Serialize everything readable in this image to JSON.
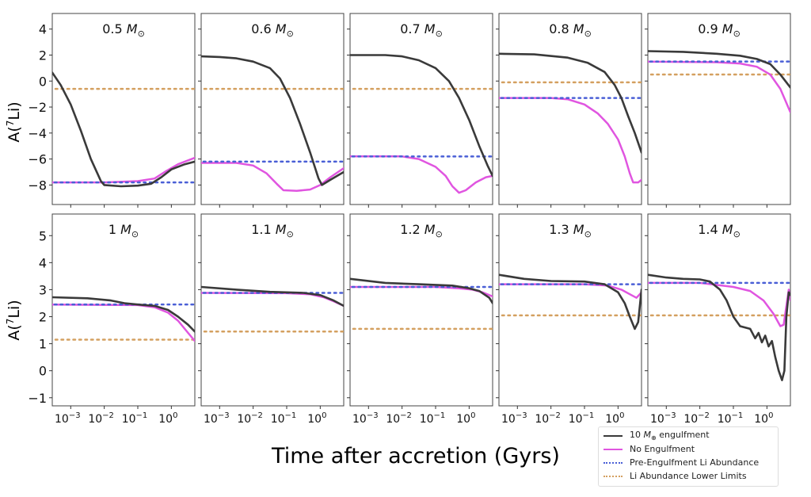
{
  "chart_data": {
    "type": "line",
    "figure_xlabel": "Time after accretion (Gyrs)",
    "ylabel": "A(⁷Li)",
    "xscale": "log",
    "xlim_log10": [
      -3.55,
      0.7
    ],
    "xticks": [
      {
        "log10": -3,
        "label": "10",
        "exp": "−3"
      },
      {
        "log10": -2,
        "label": "10",
        "exp": "−2"
      },
      {
        "log10": -1,
        "label": "10",
        "exp": "−1"
      },
      {
        "log10": 0,
        "label": "10",
        "exp": "0"
      }
    ],
    "rows": [
      {
        "ylim": [
          -9.5,
          5.2
        ],
        "yticks": [
          4,
          2,
          0,
          -2,
          -4,
          -6,
          -8
        ],
        "ytick_labels": [
          "4",
          "2",
          "0",
          "−2",
          "−4",
          "−6",
          "−8"
        ]
      },
      {
        "ylim": [
          -1.3,
          5.8
        ],
        "yticks": [
          5,
          4,
          3,
          2,
          1,
          0,
          -1
        ],
        "ytick_labels": [
          "5",
          "4",
          "3",
          "2",
          "1",
          "0",
          "−1"
        ]
      }
    ],
    "legend": {
      "placement": "bottom-right",
      "entries": [
        {
          "key": "engulf",
          "label_pre": "10 ",
          "label_sym": "M",
          "label_sub": "⊕",
          "label_post": " engulfment",
          "color": "#3a3a3a",
          "style": "solid"
        },
        {
          "key": "noengulf",
          "label": "No Engulfment",
          "color": "#e055e0",
          "style": "solid"
        },
        {
          "key": "pre",
          "label": "Pre-Engulfment Li Abundance",
          "color": "#4a5fd6",
          "style": "dotted"
        },
        {
          "key": "lower",
          "label": "Li Abundance Lower Limits",
          "color": "#d4a060",
          "style": "dotted"
        }
      ]
    },
    "panels": [
      {
        "mass": "0.5",
        "row": 0,
        "col": 0,
        "pre": -7.8,
        "lower": -0.6,
        "engulf": [
          [
            -3.55,
            0.65
          ],
          [
            -3.3,
            -0.3
          ],
          [
            -3.0,
            -1.8
          ],
          [
            -2.7,
            -3.8
          ],
          [
            -2.4,
            -6.0
          ],
          [
            -2.1,
            -7.7
          ],
          [
            -2.0,
            -8.0
          ],
          [
            -1.5,
            -8.1
          ],
          [
            -1.0,
            -8.05
          ],
          [
            -0.6,
            -7.9
          ],
          [
            -0.3,
            -7.4
          ],
          [
            0.0,
            -6.8
          ],
          [
            0.4,
            -6.4
          ],
          [
            0.7,
            -6.2
          ]
        ],
        "noengulf": [
          [
            -3.55,
            -7.8
          ],
          [
            -2.0,
            -7.8
          ],
          [
            -1.0,
            -7.7
          ],
          [
            -0.5,
            -7.5
          ],
          [
            -0.2,
            -7.0
          ],
          [
            0.2,
            -6.4
          ],
          [
            0.7,
            -5.9
          ]
        ]
      },
      {
        "mass": "0.6",
        "row": 0,
        "col": 1,
        "pre": -6.2,
        "lower": -0.6,
        "engulf": [
          [
            -3.55,
            1.9
          ],
          [
            -3.0,
            1.85
          ],
          [
            -2.5,
            1.75
          ],
          [
            -2.0,
            1.5
          ],
          [
            -1.5,
            1.0
          ],
          [
            -1.2,
            0.2
          ],
          [
            -0.9,
            -1.3
          ],
          [
            -0.6,
            -3.3
          ],
          [
            -0.3,
            -5.5
          ],
          [
            -0.05,
            -7.5
          ],
          [
            0.05,
            -8.0
          ],
          [
            0.3,
            -7.6
          ],
          [
            0.7,
            -7.0
          ]
        ],
        "noengulf": [
          [
            -3.55,
            -6.3
          ],
          [
            -2.5,
            -6.3
          ],
          [
            -2.0,
            -6.5
          ],
          [
            -1.6,
            -7.1
          ],
          [
            -1.3,
            -7.9
          ],
          [
            -1.1,
            -8.4
          ],
          [
            -0.7,
            -8.45
          ],
          [
            -0.3,
            -8.35
          ],
          [
            0.0,
            -8.0
          ],
          [
            0.3,
            -7.4
          ],
          [
            0.7,
            -6.7
          ]
        ]
      },
      {
        "mass": "0.7",
        "row": 0,
        "col": 2,
        "pre": -5.8,
        "lower": -0.6,
        "engulf": [
          [
            -3.55,
            2.0
          ],
          [
            -2.5,
            2.0
          ],
          [
            -2.0,
            1.9
          ],
          [
            -1.5,
            1.6
          ],
          [
            -1.0,
            1.0
          ],
          [
            -0.6,
            0.0
          ],
          [
            -0.3,
            -1.3
          ],
          [
            0.0,
            -3.0
          ],
          [
            0.3,
            -5.0
          ],
          [
            0.55,
            -6.5
          ],
          [
            0.7,
            -7.3
          ]
        ],
        "noengulf": [
          [
            -3.55,
            -5.8
          ],
          [
            -2.0,
            -5.8
          ],
          [
            -1.5,
            -6.0
          ],
          [
            -1.0,
            -6.6
          ],
          [
            -0.7,
            -7.3
          ],
          [
            -0.5,
            -8.1
          ],
          [
            -0.3,
            -8.6
          ],
          [
            -0.1,
            -8.4
          ],
          [
            0.2,
            -7.8
          ],
          [
            0.5,
            -7.4
          ],
          [
            0.7,
            -7.3
          ]
        ]
      },
      {
        "mass": "0.8",
        "row": 0,
        "col": 3,
        "pre": -1.3,
        "lower": -0.1,
        "engulf": [
          [
            -3.55,
            2.1
          ],
          [
            -2.5,
            2.05
          ],
          [
            -1.5,
            1.8
          ],
          [
            -0.9,
            1.4
          ],
          [
            -0.4,
            0.7
          ],
          [
            -0.1,
            -0.3
          ],
          [
            0.1,
            -1.3
          ],
          [
            0.3,
            -2.7
          ],
          [
            0.5,
            -4.0
          ],
          [
            0.7,
            -5.5
          ]
        ],
        "noengulf": [
          [
            -3.55,
            -1.3
          ],
          [
            -2.0,
            -1.3
          ],
          [
            -1.5,
            -1.4
          ],
          [
            -1.0,
            -1.8
          ],
          [
            -0.6,
            -2.5
          ],
          [
            -0.3,
            -3.3
          ],
          [
            0.0,
            -4.5
          ],
          [
            0.2,
            -5.8
          ],
          [
            0.35,
            -7.1
          ],
          [
            0.45,
            -7.8
          ],
          [
            0.6,
            -7.8
          ],
          [
            0.7,
            -7.6
          ]
        ]
      },
      {
        "mass": "0.9",
        "row": 0,
        "col": 4,
        "pre": 1.5,
        "lower": 0.5,
        "engulf": [
          [
            -3.55,
            2.3
          ],
          [
            -2.5,
            2.25
          ],
          [
            -1.5,
            2.1
          ],
          [
            -0.8,
            1.95
          ],
          [
            -0.3,
            1.7
          ],
          [
            0.1,
            1.3
          ],
          [
            0.4,
            0.5
          ],
          [
            0.7,
            -0.5
          ]
        ],
        "noengulf": [
          [
            -3.55,
            1.5
          ],
          [
            -1.5,
            1.45
          ],
          [
            -0.8,
            1.35
          ],
          [
            -0.3,
            1.1
          ],
          [
            0.1,
            0.5
          ],
          [
            0.4,
            -0.6
          ],
          [
            0.7,
            -2.4
          ]
        ]
      },
      {
        "mass": "1",
        "row": 1,
        "col": 0,
        "pre": 2.45,
        "lower": 1.15,
        "engulf": [
          [
            -3.55,
            2.72
          ],
          [
            -2.5,
            2.68
          ],
          [
            -1.8,
            2.6
          ],
          [
            -1.4,
            2.5
          ],
          [
            -1.0,
            2.45
          ],
          [
            -0.5,
            2.4
          ],
          [
            -0.1,
            2.25
          ],
          [
            0.2,
            2.0
          ],
          [
            0.5,
            1.7
          ],
          [
            0.7,
            1.45
          ]
        ],
        "noengulf": [
          [
            -3.55,
            2.45
          ],
          [
            -1.0,
            2.43
          ],
          [
            -0.5,
            2.35
          ],
          [
            -0.1,
            2.15
          ],
          [
            0.2,
            1.85
          ],
          [
            0.5,
            1.4
          ],
          [
            0.7,
            1.1
          ]
        ]
      },
      {
        "mass": "1.1",
        "row": 1,
        "col": 1,
        "pre": 2.88,
        "lower": 1.45,
        "engulf": [
          [
            -3.55,
            3.1
          ],
          [
            -2.5,
            3.0
          ],
          [
            -1.5,
            2.92
          ],
          [
            -0.5,
            2.88
          ],
          [
            0.0,
            2.8
          ],
          [
            0.4,
            2.6
          ],
          [
            0.7,
            2.4
          ]
        ],
        "noengulf": [
          [
            -3.55,
            2.88
          ],
          [
            -1.0,
            2.87
          ],
          [
            -0.3,
            2.83
          ],
          [
            0.1,
            2.72
          ],
          [
            0.4,
            2.57
          ],
          [
            0.7,
            2.4
          ]
        ]
      },
      {
        "mass": "1.2",
        "row": 1,
        "col": 2,
        "pre": 3.1,
        "lower": 1.55,
        "engulf": [
          [
            -3.55,
            3.4
          ],
          [
            -2.5,
            3.25
          ],
          [
            -1.5,
            3.2
          ],
          [
            -0.5,
            3.15
          ],
          [
            0.0,
            3.05
          ],
          [
            0.3,
            2.95
          ],
          [
            0.6,
            2.7
          ],
          [
            0.7,
            2.5
          ]
        ],
        "noengulf": [
          [
            -3.55,
            3.1
          ],
          [
            -1.0,
            3.1
          ],
          [
            -0.3,
            3.05
          ],
          [
            0.1,
            3.0
          ],
          [
            0.4,
            2.9
          ],
          [
            0.7,
            2.75
          ]
        ]
      },
      {
        "mass": "1.3",
        "row": 1,
        "col": 3,
        "pre": 3.2,
        "lower": 2.05,
        "engulf": [
          [
            -3.55,
            3.55
          ],
          [
            -2.8,
            3.4
          ],
          [
            -2.0,
            3.32
          ],
          [
            -1.0,
            3.3
          ],
          [
            -0.4,
            3.2
          ],
          [
            0.0,
            2.9
          ],
          [
            0.2,
            2.5
          ],
          [
            0.35,
            2.0
          ],
          [
            0.5,
            1.55
          ],
          [
            0.6,
            1.8
          ],
          [
            0.7,
            3.0
          ]
        ],
        "noengulf": [
          [
            -3.55,
            3.2
          ],
          [
            -1.0,
            3.2
          ],
          [
            -0.3,
            3.15
          ],
          [
            0.1,
            3.0
          ],
          [
            0.4,
            2.8
          ],
          [
            0.55,
            2.7
          ],
          [
            0.7,
            2.9
          ]
        ]
      },
      {
        "mass": "1.4",
        "row": 1,
        "col": 4,
        "pre": 3.25,
        "lower": 2.05,
        "engulf": [
          [
            -3.55,
            3.55
          ],
          [
            -3.0,
            3.45
          ],
          [
            -2.5,
            3.4
          ],
          [
            -2.0,
            3.38
          ],
          [
            -1.7,
            3.3
          ],
          [
            -1.4,
            3.0
          ],
          [
            -1.2,
            2.6
          ],
          [
            -1.0,
            2.0
          ],
          [
            -0.8,
            1.65
          ],
          [
            -0.5,
            1.55
          ],
          [
            -0.35,
            1.2
          ],
          [
            -0.25,
            1.4
          ],
          [
            -0.15,
            1.05
          ],
          [
            -0.05,
            1.3
          ],
          [
            0.05,
            0.9
          ],
          [
            0.15,
            1.1
          ],
          [
            0.25,
            0.5
          ],
          [
            0.35,
            0.0
          ],
          [
            0.45,
            -0.35
          ],
          [
            0.52,
            0.0
          ],
          [
            0.58,
            2.0
          ],
          [
            0.65,
            2.9
          ],
          [
            0.7,
            2.8
          ]
        ],
        "noengulf": [
          [
            -3.55,
            3.25
          ],
          [
            -2.0,
            3.25
          ],
          [
            -1.0,
            3.1
          ],
          [
            -0.5,
            2.95
          ],
          [
            -0.1,
            2.6
          ],
          [
            0.2,
            2.1
          ],
          [
            0.4,
            1.65
          ],
          [
            0.5,
            1.7
          ],
          [
            0.58,
            2.4
          ],
          [
            0.65,
            3.0
          ],
          [
            0.7,
            2.6
          ]
        ]
      }
    ]
  }
}
